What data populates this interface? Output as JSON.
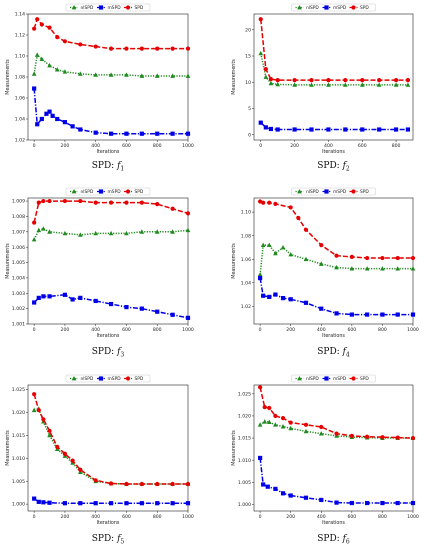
{
  "colors": {
    "nlSPD": "#1f8a1f",
    "mSPD": "#0000e6",
    "SPD": "#e60000"
  },
  "chart_data": [
    {
      "type": "line",
      "caption_main": "SPD: ",
      "caption_var": "f",
      "caption_sub": "1",
      "xlabel": "Iterations",
      "ylabel": "Measurements",
      "xlim": [
        -40,
        1000
      ],
      "ylim": [
        1.02,
        1.14
      ],
      "xticks": [
        0,
        200,
        400,
        600,
        800,
        1000
      ],
      "yticks": [
        1.02,
        1.04,
        1.06,
        1.08,
        1.1,
        1.12,
        1.14
      ],
      "xtick_labels": [
        "0",
        "200",
        "400",
        "600",
        "800",
        "1000"
      ],
      "ytick_labels": [
        "1.02",
        "1.04",
        "1.06",
        "1.08",
        "1.10",
        "1.12",
        "1.14"
      ],
      "legend": [
        "nlSPD",
        "mSPD",
        "SPD"
      ],
      "legend_position": "top-center",
      "series": [
        {
          "name": "nlSPD",
          "x": [
            0,
            20,
            50,
            100,
            150,
            200,
            300,
            400,
            500,
            600,
            700,
            800,
            900,
            1000
          ],
          "y": [
            1.083,
            1.101,
            1.097,
            1.091,
            1.087,
            1.085,
            1.083,
            1.082,
            1.082,
            1.082,
            1.081,
            1.081,
            1.081,
            1.081
          ]
        },
        {
          "name": "mSPD",
          "x": [
            0,
            20,
            50,
            80,
            100,
            120,
            150,
            200,
            250,
            300,
            400,
            500,
            600,
            700,
            800,
            900,
            1000
          ],
          "y": [
            1.069,
            1.035,
            1.04,
            1.045,
            1.047,
            1.043,
            1.04,
            1.037,
            1.033,
            1.03,
            1.027,
            1.026,
            1.026,
            1.026,
            1.026,
            1.026,
            1.026
          ]
        },
        {
          "name": "SPD",
          "x": [
            0,
            20,
            50,
            100,
            150,
            200,
            300,
            400,
            500,
            600,
            700,
            800,
            900,
            1000
          ],
          "y": [
            1.126,
            1.135,
            1.13,
            1.127,
            1.118,
            1.114,
            1.111,
            1.109,
            1.107,
            1.107,
            1.107,
            1.107,
            1.107,
            1.107
          ]
        }
      ]
    },
    {
      "type": "line",
      "caption_main": "SPD: ",
      "caption_var": "f",
      "caption_sub": "2",
      "xlabel": "Iterations",
      "ylabel": "Measurements",
      "xlim": [
        -40,
        900
      ],
      "ylim": [
        -1,
        23
      ],
      "xticks": [
        0,
        200,
        400,
        600,
        800
      ],
      "yticks": [
        0,
        5,
        10,
        15,
        20
      ],
      "xtick_labels": [
        "0",
        "200",
        "400",
        "600",
        "800"
      ],
      "ytick_labels": [
        "0",
        "5",
        "10",
        "15",
        "20"
      ],
      "legend": [
        "nlSPD",
        "mSPD",
        "SPD"
      ],
      "legend_position": "top-center",
      "series": [
        {
          "name": "nlSPD",
          "x": [
            0,
            30,
            60,
            100,
            200,
            300,
            400,
            500,
            600,
            700,
            800,
            870
          ],
          "y": [
            15.5,
            11.0,
            9.8,
            9.6,
            9.5,
            9.5,
            9.5,
            9.5,
            9.5,
            9.5,
            9.5,
            9.5
          ]
        },
        {
          "name": "mSPD",
          "x": [
            0,
            30,
            60,
            100,
            200,
            300,
            400,
            500,
            600,
            700,
            800,
            870
          ],
          "y": [
            2.3,
            1.4,
            1.1,
            1.0,
            1.0,
            1.0,
            1.0,
            1.0,
            1.0,
            1.0,
            1.0,
            1.0
          ]
        },
        {
          "name": "SPD",
          "x": [
            0,
            30,
            60,
            100,
            200,
            300,
            400,
            500,
            600,
            700,
            800,
            870
          ],
          "y": [
            22.0,
            12.5,
            10.6,
            10.4,
            10.4,
            10.4,
            10.4,
            10.4,
            10.4,
            10.4,
            10.4,
            10.4
          ]
        }
      ]
    },
    {
      "type": "line",
      "caption_main": "SPD: ",
      "caption_var": "f",
      "caption_sub": "3",
      "xlabel": "Iterations",
      "ylabel": "Measurements",
      "xlim": [
        -40,
        1000
      ],
      "ylim": [
        1.001,
        1.0092
      ],
      "xticks": [
        0,
        200,
        400,
        600,
        800,
        1000
      ],
      "yticks": [
        1.001,
        1.002,
        1.003,
        1.004,
        1.005,
        1.006,
        1.007,
        1.008,
        1.009
      ],
      "xtick_labels": [
        "0",
        "200",
        "400",
        "600",
        "800",
        "1000"
      ],
      "ytick_labels": [
        "1.001",
        "1.002",
        "1.003",
        "1.004",
        "1.005",
        "1.006",
        "1.007",
        "1.008",
        "1.009"
      ],
      "legend": [
        "nlSPD",
        "mSPD",
        "SPD"
      ],
      "legend_position": "top-center",
      "series": [
        {
          "name": "nlSPD",
          "x": [
            0,
            30,
            60,
            100,
            200,
            300,
            400,
            500,
            600,
            700,
            800,
            900,
            1000
          ],
          "y": [
            1.0065,
            1.0071,
            1.0072,
            1.007,
            1.0069,
            1.0068,
            1.0069,
            1.0069,
            1.0069,
            1.007,
            1.007,
            1.007,
            1.0071
          ]
        },
        {
          "name": "mSPD",
          "x": [
            0,
            30,
            60,
            100,
            200,
            250,
            300,
            400,
            500,
            600,
            700,
            800,
            900,
            1000
          ],
          "y": [
            1.0024,
            1.0027,
            1.0028,
            1.0028,
            1.0029,
            1.0026,
            1.0027,
            1.0025,
            1.0023,
            1.0021,
            1.002,
            1.0018,
            1.0016,
            1.0014
          ]
        },
        {
          "name": "SPD",
          "x": [
            0,
            30,
            60,
            100,
            200,
            300,
            400,
            500,
            600,
            700,
            800,
            900,
            1000
          ],
          "y": [
            1.0076,
            1.0089,
            1.009,
            1.009,
            1.009,
            1.009,
            1.0089,
            1.0089,
            1.0089,
            1.0089,
            1.0088,
            1.0085,
            1.0082
          ]
        }
      ]
    },
    {
      "type": "line",
      "caption_main": "SPD: ",
      "caption_var": "f",
      "caption_sub": "4",
      "xlabel": "Iterations",
      "ylabel": "Measurements",
      "xlim": [
        -40,
        1000
      ],
      "ylim": [
        1.005,
        1.112
      ],
      "xticks": [
        0,
        200,
        400,
        600,
        800,
        1000
      ],
      "yticks": [
        1.02,
        1.04,
        1.06,
        1.08,
        1.1
      ],
      "xtick_labels": [
        "0",
        "200",
        "400",
        "600",
        "800",
        "1000"
      ],
      "ytick_labels": [
        "1.02",
        "1.04",
        "1.06",
        "1.08",
        "1.10"
      ],
      "legend": [
        "nlSPD",
        "mSPD",
        "SPD"
      ],
      "legend_position": "top-center",
      "series": [
        {
          "name": "nlSPD",
          "x": [
            0,
            20,
            60,
            100,
            150,
            200,
            300,
            400,
            500,
            600,
            700,
            800,
            900,
            1000
          ],
          "y": [
            1.047,
            1.072,
            1.072,
            1.065,
            1.07,
            1.064,
            1.06,
            1.056,
            1.053,
            1.052,
            1.052,
            1.052,
            1.052,
            1.052
          ]
        },
        {
          "name": "mSPD",
          "x": [
            0,
            20,
            60,
            100,
            150,
            200,
            300,
            400,
            500,
            600,
            700,
            800,
            900,
            1000
          ],
          "y": [
            1.044,
            1.029,
            1.028,
            1.03,
            1.027,
            1.026,
            1.023,
            1.018,
            1.014,
            1.013,
            1.013,
            1.013,
            1.013,
            1.013
          ]
        },
        {
          "name": "SPD",
          "x": [
            0,
            20,
            60,
            100,
            200,
            250,
            300,
            400,
            500,
            600,
            700,
            800,
            900,
            1000
          ],
          "y": [
            1.109,
            1.108,
            1.108,
            1.107,
            1.104,
            1.095,
            1.085,
            1.072,
            1.063,
            1.062,
            1.061,
            1.061,
            1.061,
            1.061
          ]
        }
      ]
    },
    {
      "type": "line",
      "caption_main": "SPD: ",
      "caption_var": "f",
      "caption_sub": "5",
      "xlabel": "Iterations",
      "ylabel": "Measurements",
      "xlim": [
        -40,
        1000
      ],
      "ylim": [
        0.9985,
        1.026
      ],
      "xticks": [
        0,
        200,
        400,
        600,
        800,
        1000
      ],
      "yticks": [
        1.0,
        1.005,
        1.01,
        1.015,
        1.02,
        1.025
      ],
      "xtick_labels": [
        "0",
        "200",
        "400",
        "600",
        "800",
        "1000"
      ],
      "ytick_labels": [
        "1.000",
        "1.005",
        "1.010",
        "1.015",
        "1.020",
        "1.025"
      ],
      "legend": [
        "nlSPD",
        "mSPD",
        "SPD"
      ],
      "legend_position": "top-center",
      "series": [
        {
          "name": "nlSPD",
          "x": [
            0,
            30,
            60,
            100,
            150,
            200,
            250,
            300,
            400,
            500,
            600,
            700,
            800,
            900,
            1000
          ],
          "y": [
            1.0205,
            1.0208,
            1.018,
            1.015,
            1.012,
            1.0105,
            1.009,
            1.007,
            1.005,
            1.0045,
            1.0044,
            1.0044,
            1.0044,
            1.0044,
            1.0044
          ]
        },
        {
          "name": "mSPD",
          "x": [
            0,
            30,
            60,
            100,
            200,
            300,
            400,
            500,
            600,
            700,
            800,
            900,
            1000
          ],
          "y": [
            1.0012,
            1.0005,
            1.0004,
            1.0003,
            1.0002,
            1.0002,
            1.0002,
            1.0002,
            1.0002,
            1.0002,
            1.0002,
            1.0002,
            1.0002
          ]
        },
        {
          "name": "SPD",
          "x": [
            0,
            30,
            60,
            100,
            150,
            200,
            250,
            300,
            400,
            500,
            600,
            700,
            800,
            900,
            1000
          ],
          "y": [
            1.024,
            1.0205,
            1.0185,
            1.016,
            1.0125,
            1.011,
            1.0095,
            1.0075,
            1.0052,
            1.0045,
            1.0044,
            1.0044,
            1.0044,
            1.0044,
            1.0044
          ]
        }
      ]
    },
    {
      "type": "line",
      "caption_main": "SPD: ",
      "caption_var": "f",
      "caption_sub": "6",
      "xlabel": "Iterations",
      "ylabel": "Measurements",
      "xlim": [
        -40,
        1000
      ],
      "ylim": [
        0.9985,
        1.027
      ],
      "xticks": [
        0,
        200,
        400,
        600,
        800,
        1000
      ],
      "yticks": [
        1.0,
        1.005,
        1.01,
        1.015,
        1.02,
        1.025
      ],
      "xtick_labels": [
        "0",
        "200",
        "400",
        "600",
        "800",
        "1000"
      ],
      "ytick_labels": [
        "1.000",
        "1.005",
        "1.010",
        "1.015",
        "1.020",
        "1.025"
      ],
      "legend": [
        "nlSPD",
        "mSPD",
        "SPD"
      ],
      "legend_position": "top-center",
      "series": [
        {
          "name": "nlSPD",
          "x": [
            0,
            30,
            60,
            100,
            150,
            200,
            300,
            400,
            500,
            600,
            700,
            800,
            900,
            1000
          ],
          "y": [
            1.018,
            1.0187,
            1.0186,
            1.018,
            1.0176,
            1.0172,
            1.0165,
            1.016,
            1.0155,
            1.0152,
            1.0151,
            1.015,
            1.015,
            1.015
          ]
        },
        {
          "name": "mSPD",
          "x": [
            0,
            20,
            50,
            100,
            150,
            200,
            300,
            400,
            500,
            600,
            700,
            800,
            900,
            1000
          ],
          "y": [
            1.0105,
            1.0045,
            1.004,
            1.0035,
            1.0025,
            1.002,
            1.0015,
            1.001,
            1.0004,
            1.0003,
            1.0003,
            1.0003,
            1.0003,
            1.0003
          ]
        },
        {
          "name": "SPD",
          "x": [
            0,
            30,
            60,
            100,
            150,
            200,
            300,
            400,
            500,
            600,
            700,
            800,
            900,
            1000
          ],
          "y": [
            1.0265,
            1.022,
            1.0218,
            1.02,
            1.0195,
            1.0185,
            1.018,
            1.0175,
            1.016,
            1.0155,
            1.0153,
            1.0152,
            1.0151,
            1.015
          ]
        }
      ]
    }
  ]
}
